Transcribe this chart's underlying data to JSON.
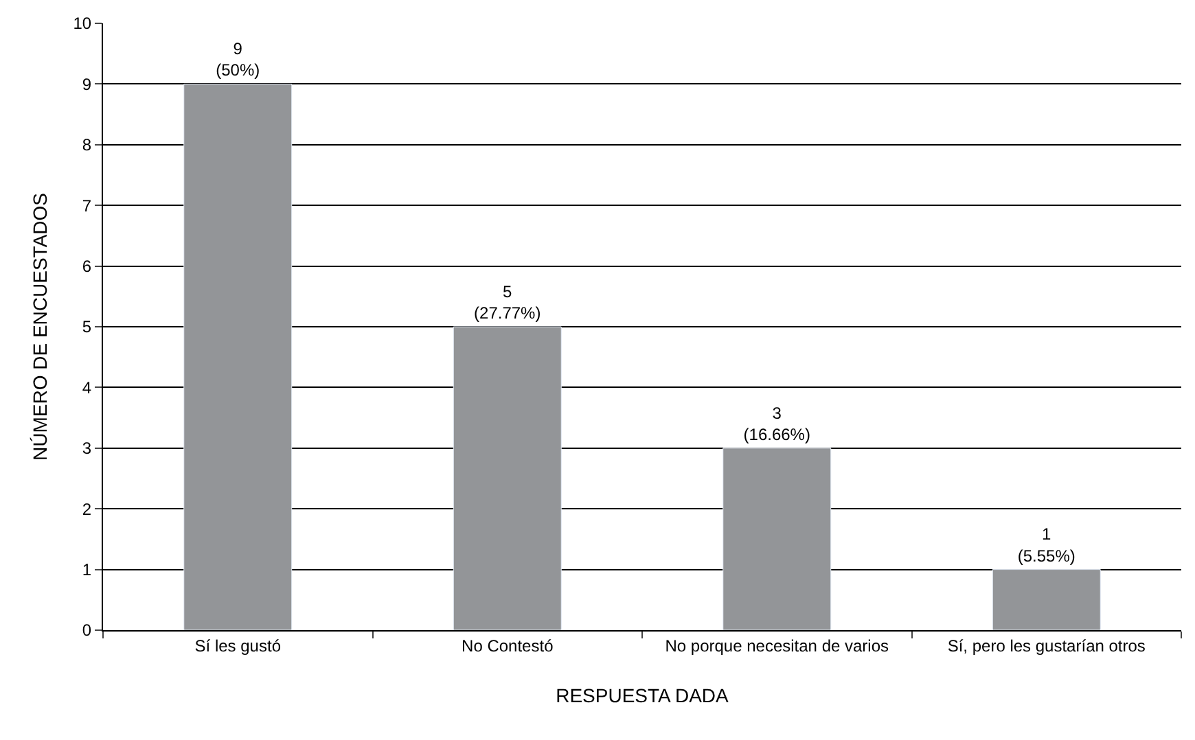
{
  "chart_data": {
    "type": "bar",
    "categories": [
      "Sí les gustó",
      "No Contestó",
      "No porque necesitan de varios",
      "Sí, pero les gustarían otros"
    ],
    "values": [
      9,
      5,
      3,
      1
    ],
    "value_labels": [
      "9\n(50%)",
      "5\n(27.77%)",
      "3\n(16.66%)",
      "1\n(5.55%)"
    ],
    "color": "#939598",
    "xlabel": "RESPUESTA DADA",
    "ylabel": "NÚMERO DE ENCUESTADOS",
    "ylim": [
      0,
      10
    ],
    "yticks": [
      0,
      1,
      2,
      3,
      4,
      5,
      6,
      7,
      8,
      9,
      10
    ],
    "grid": "y"
  }
}
